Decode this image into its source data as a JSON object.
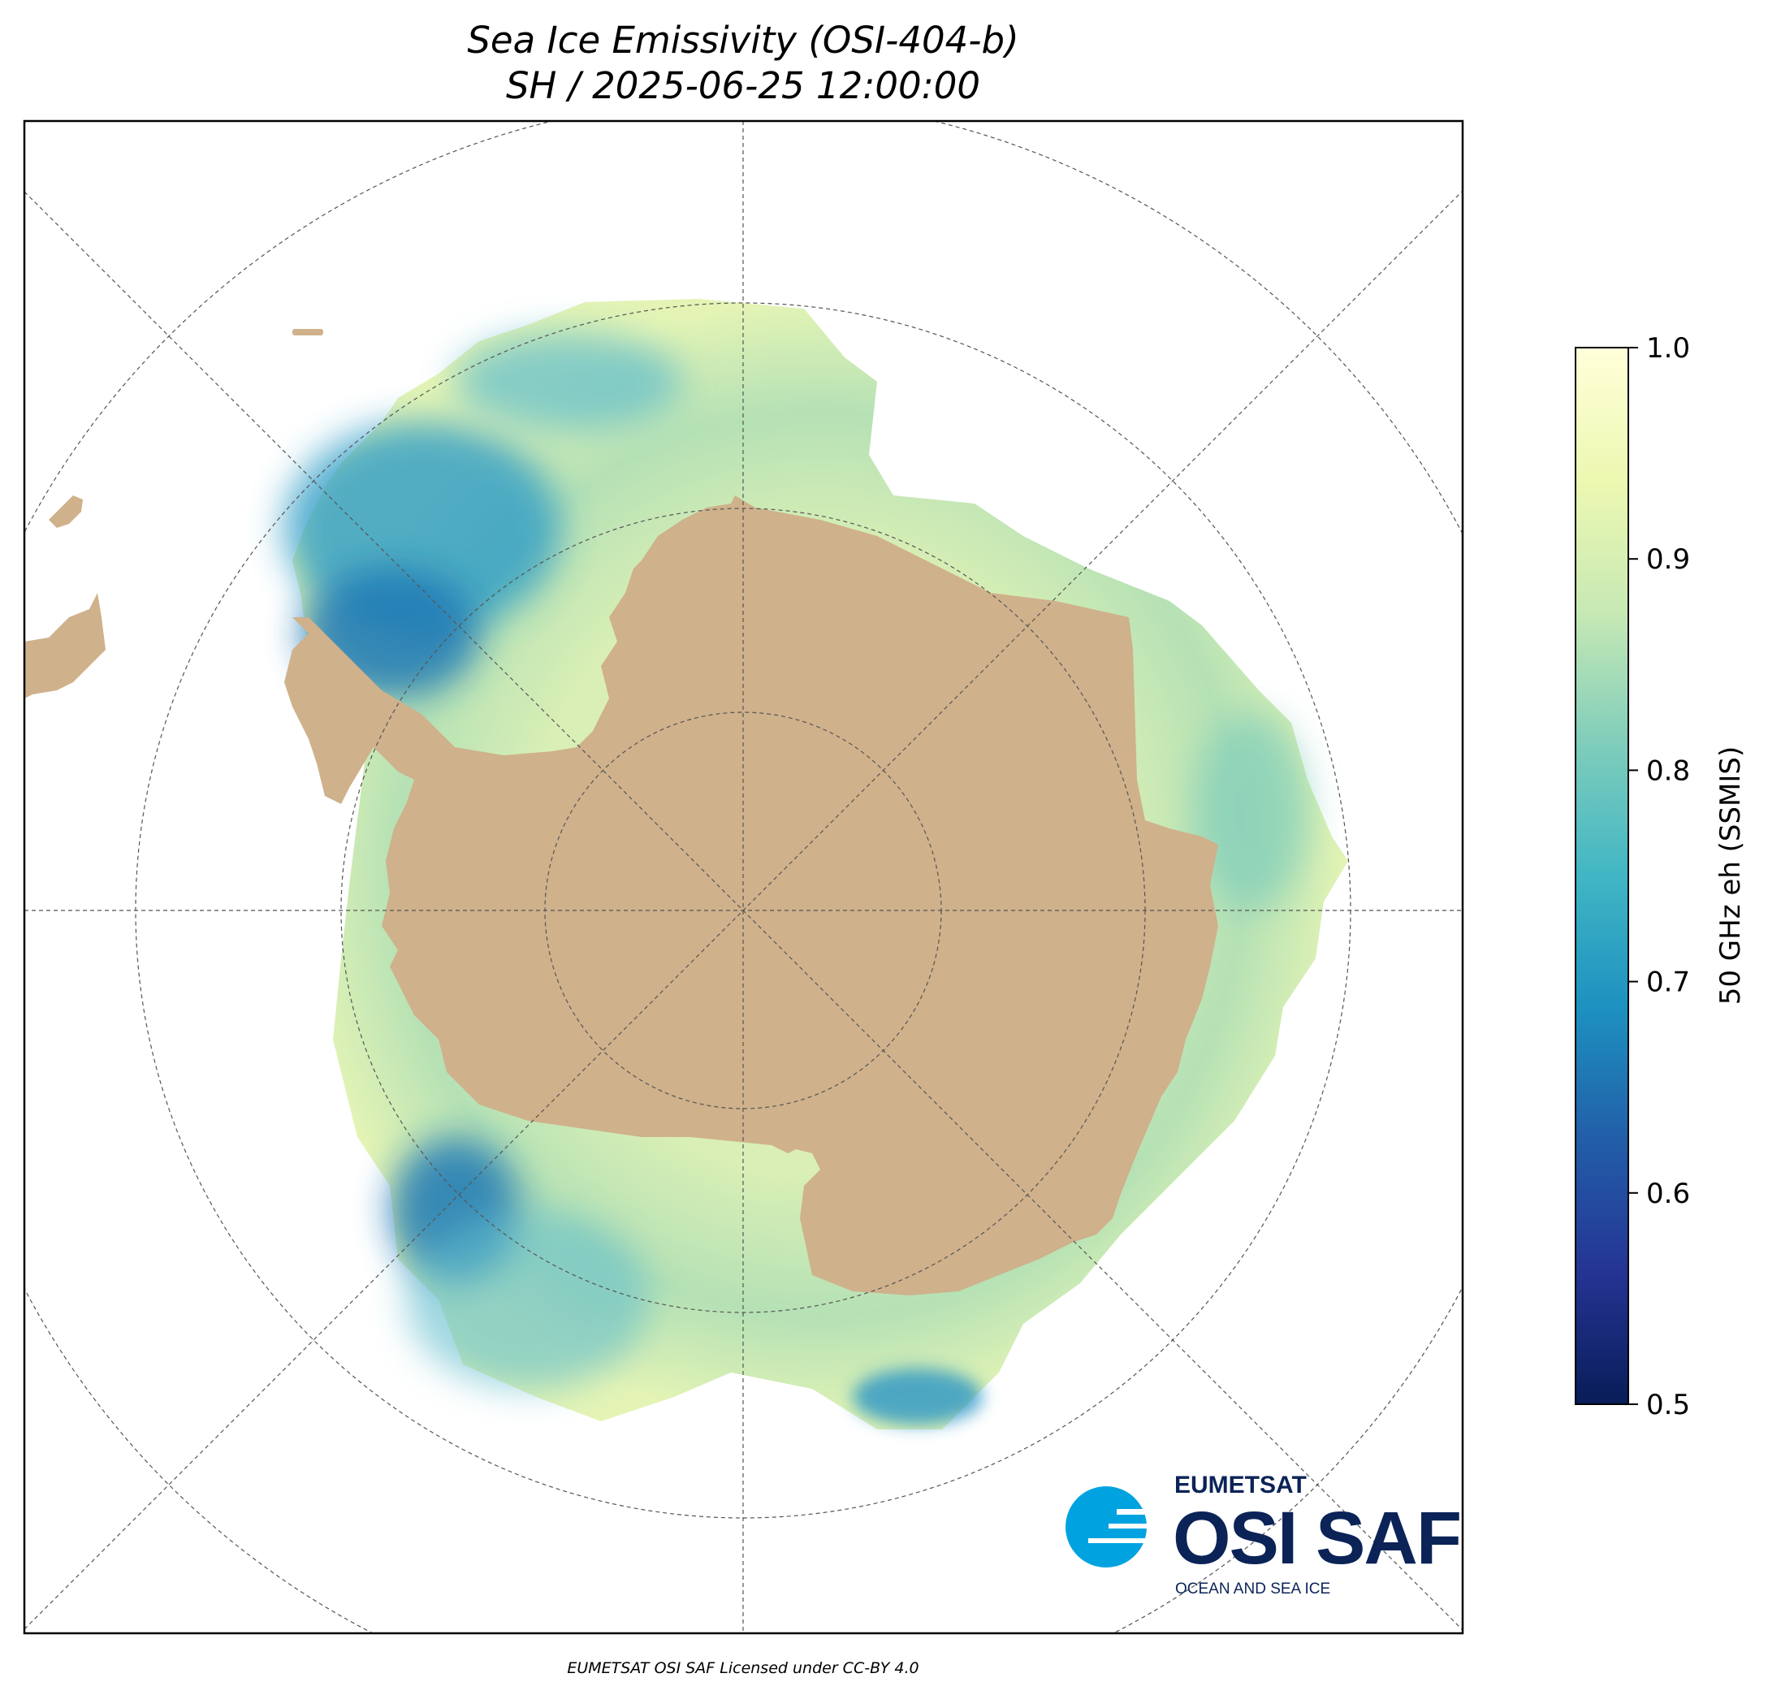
{
  "map": {
    "title_line1": "Sea Ice Emissivity (OSI-404-b)",
    "title_line2": "SH / 2025-06-25 12:00:00",
    "footer": "EUMETSAT OSI SAF Licensed under CC-BY 4.0",
    "projection": "south polar stereographic",
    "colors": {
      "land": "#cfb18b",
      "ocean": "#ffffff",
      "graticule": "#555555"
    }
  },
  "colorbar": {
    "label": "50 GHz eh (SSMIS)",
    "min": 0.5,
    "max": 1.0,
    "ticks": [
      "0.5",
      "0.6",
      "0.7",
      "0.8",
      "0.9",
      "1.0"
    ],
    "colormap": "YlGnBu_r",
    "stops": [
      "#081d58",
      "#253494",
      "#225ea8",
      "#1d91c0",
      "#41b6c4",
      "#7fcdbb",
      "#c7e9b4",
      "#edf8b1",
      "#ffffd9"
    ]
  },
  "logo": {
    "org": "EUMETSAT",
    "name": "OSI SAF",
    "tagline": "OCEAN AND SEA ICE",
    "color_primary": "#0b2357",
    "color_accent": "#00a3e0"
  }
}
